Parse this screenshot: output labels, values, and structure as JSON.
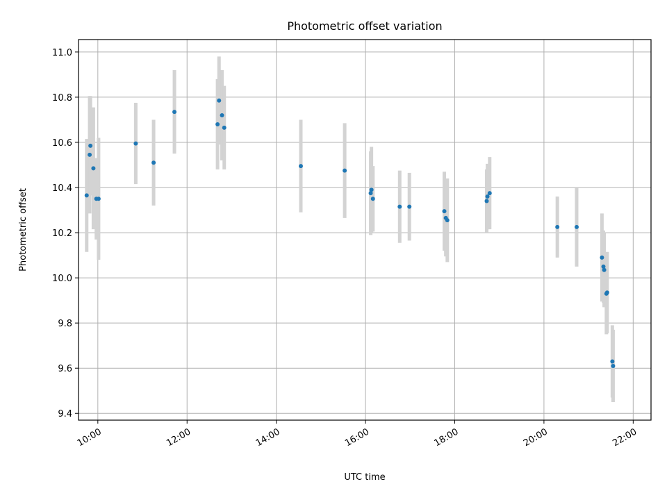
{
  "chart_data": {
    "type": "scatter",
    "title": "Photometric offset variation",
    "xlabel": "UTC time",
    "ylabel": "Photometric offset",
    "xlim": [
      "09:34",
      "22:24"
    ],
    "ylim": [
      9.37,
      11.055
    ],
    "x_ticks": [
      "10:00",
      "12:00",
      "14:00",
      "16:00",
      "18:00",
      "20:00",
      "22:00"
    ],
    "y_ticks": [
      9.4,
      9.6,
      9.8,
      10.0,
      10.2,
      10.4,
      10.6,
      10.8,
      11.0
    ],
    "grid": true,
    "colors": {
      "marker": "#1f77b4",
      "errorbar": "#d3d3d3",
      "grid": "#b0b0b0"
    },
    "series": [
      {
        "x": [
          "09:45",
          "09:49",
          "09:50",
          "09:54",
          "09:58",
          "10:01",
          "10:51",
          "11:15",
          "11:43",
          "12:41",
          "12:43",
          "12:47",
          "12:50",
          "14:33",
          "15:32",
          "16:07",
          "16:08",
          "16:10",
          "16:46",
          "16:59",
          "17:46",
          "17:48",
          "17:50",
          "18:43",
          "18:44",
          "18:47",
          "20:18",
          "20:44",
          "21:18",
          "21:20",
          "21:21",
          "21:24",
          "21:25",
          "21:32",
          "21:33"
        ],
        "y": [
          10.365,
          10.545,
          10.585,
          10.485,
          10.35,
          10.35,
          10.595,
          10.51,
          10.735,
          10.68,
          10.785,
          10.72,
          10.665,
          10.495,
          10.475,
          10.375,
          10.39,
          10.35,
          10.315,
          10.315,
          10.295,
          10.265,
          10.255,
          10.34,
          10.36,
          10.375,
          10.225,
          10.225,
          10.09,
          10.05,
          10.035,
          9.93,
          9.935,
          9.63,
          9.61
        ],
        "yerr": [
          0.25,
          0.26,
          0.22,
          0.27,
          0.18,
          0.27,
          0.18,
          0.19,
          0.185,
          0.2,
          0.195,
          0.2,
          0.185,
          0.205,
          0.21,
          0.185,
          0.19,
          0.145,
          0.16,
          0.15,
          0.175,
          0.17,
          0.185,
          0.14,
          0.145,
          0.16,
          0.135,
          0.175,
          0.195,
          0.16,
          0.165,
          0.18,
          0.18,
          0.16,
          0.16
        ]
      }
    ]
  }
}
